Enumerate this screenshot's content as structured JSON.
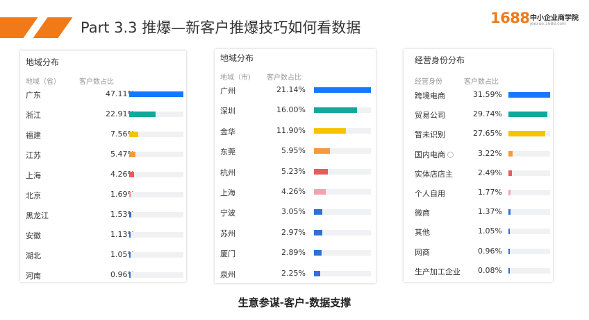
{
  "title": "Part 3.3 推爆—新客户推爆技巧如何看数据",
  "logo": {
    "number": "1688",
    "name": "中小企业商学院",
    "url": "jeexue.1688.com"
  },
  "caption": "生意参谋-客户-数据支撑",
  "colors": {
    "blue": "#1677ff",
    "teal": "#13a89e",
    "yellow": "#f5c400",
    "orange": "#f59a3c",
    "red": "#e85b5b",
    "pink": "#f3a3b0",
    "darkblue": "#2f6fd6",
    "accent": "#f07a1a"
  },
  "chart_data": [
    {
      "type": "bar",
      "title": "地域分布",
      "columns": [
        "地域（省）",
        "客户数占比"
      ],
      "categories": [
        "广东",
        "浙江",
        "福建",
        "江苏",
        "上海",
        "北京",
        "黑龙江",
        "安徽",
        "湖北",
        "河南"
      ],
      "labels": [
        "47.11%",
        "22.91%",
        "7.56%",
        "5.47%",
        "4.26%",
        "1.69%",
        "1.53%",
        "1.13%",
        "1.05%",
        "0.96%"
      ],
      "values": [
        47.11,
        22.91,
        7.56,
        5.47,
        4.26,
        1.69,
        1.53,
        1.13,
        1.05,
        0.96
      ],
      "bar_colors": [
        "blue",
        "teal",
        "yellow",
        "orange",
        "red",
        "pink",
        "darkblue",
        "darkblue",
        "darkblue",
        "darkblue"
      ]
    },
    {
      "type": "bar",
      "title": "地域分布",
      "columns": [
        "地域（市）",
        "客户数占比"
      ],
      "categories": [
        "广州",
        "深圳",
        "金华",
        "东莞",
        "杭州",
        "上海",
        "宁波",
        "苏州",
        "厦门",
        "泉州"
      ],
      "labels": [
        "21.14%",
        "16.00%",
        "11.90%",
        "5.95%",
        "5.23%",
        "4.26%",
        "3.05%",
        "2.97%",
        "2.89%",
        "2.25%"
      ],
      "values": [
        21.14,
        16.0,
        11.9,
        5.95,
        5.23,
        4.26,
        3.05,
        2.97,
        2.89,
        2.25
      ],
      "bar_colors": [
        "blue",
        "teal",
        "yellow",
        "orange",
        "red",
        "pink",
        "darkblue",
        "darkblue",
        "darkblue",
        "darkblue"
      ]
    },
    {
      "type": "bar",
      "title": "经营身份分布",
      "columns": [
        "经营身份",
        "客户数占比"
      ],
      "categories": [
        "跨境电商",
        "贸易公司",
        "暂未识别",
        "国内电商",
        "实体店店主",
        "个人自用",
        "微商",
        "其他",
        "网商",
        "生产加工企业"
      ],
      "labels": [
        "31.59%",
        "29.74%",
        "27.65%",
        "3.22%",
        "2.49%",
        "1.77%",
        "1.37%",
        "1.05%",
        "0.96%",
        "0.08%"
      ],
      "values": [
        31.59,
        29.74,
        27.65,
        3.22,
        2.49,
        1.77,
        1.37,
        1.05,
        0.96,
        0.08
      ],
      "bar_colors": [
        "blue",
        "teal",
        "yellow",
        "orange",
        "red",
        "pink",
        "darkblue",
        "darkblue",
        "darkblue",
        "darkblue"
      ],
      "info_icon_index": 3
    }
  ]
}
